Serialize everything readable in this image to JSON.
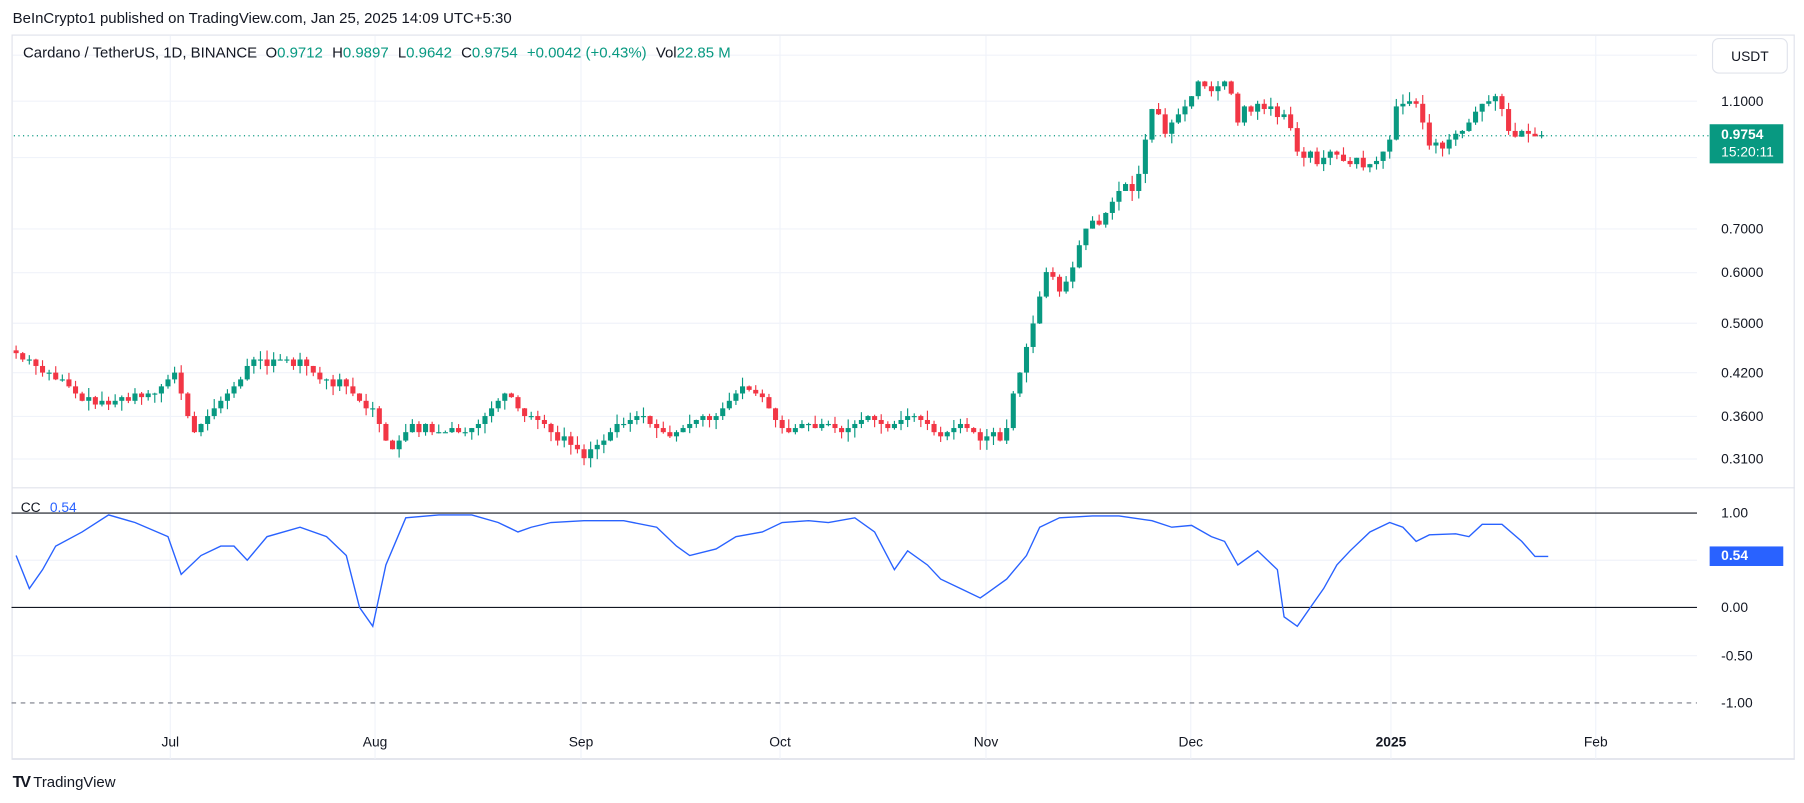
{
  "published": "BeInCrypto1 published on TradingView.com, Jan 25, 2025 14:09 UTC+5:30",
  "legend": {
    "symbol": "Cardano / TetherUS, 1D, BINANCE",
    "o_label": "O",
    "o": "0.9712",
    "h_label": "H",
    "h": "0.9897",
    "l_label": "L",
    "l": "0.9642",
    "c_label": "C",
    "c": "0.9754",
    "change": "+0.0042 (+0.43%)",
    "vol_label": "Vol",
    "vol": "22.85 M"
  },
  "currency_button": "USDT",
  "price_axis": [
    "1.1000",
    "0.7000",
    "0.6000",
    "0.5000",
    "0.4200",
    "0.3600",
    "0.3100"
  ],
  "last_price": {
    "value": "0.9754",
    "countdown": "15:20:11"
  },
  "indicator": {
    "name": "CC",
    "value": "0.54",
    "axis": [
      "1.00",
      "0.50",
      "0.00",
      "-0.50",
      "-1.00"
    ]
  },
  "time_axis": [
    "Jul",
    "Aug",
    "Sep",
    "Oct",
    "Nov",
    "Dec",
    "2025",
    "Feb"
  ],
  "footer_brand": "TradingView",
  "colors": {
    "up": "#089981",
    "down": "#f23645",
    "cc_line": "#2962ff"
  },
  "chart_data": {
    "type": "candlestick",
    "start_date": "2024-06-08",
    "interval": "1D",
    "scale": "log",
    "ylim": [
      0.28,
      1.3
    ],
    "closes": [
      0.45,
      0.44,
      0.44,
      0.43,
      0.42,
      0.42,
      0.41,
      0.41,
      0.4,
      0.39,
      0.38,
      0.385,
      0.375,
      0.38,
      0.375,
      0.38,
      0.385,
      0.38,
      0.39,
      0.385,
      0.39,
      0.39,
      0.4,
      0.41,
      0.42,
      0.39,
      0.36,
      0.34,
      0.35,
      0.36,
      0.37,
      0.38,
      0.39,
      0.4,
      0.41,
      0.43,
      0.44,
      0.44,
      0.43,
      0.44,
      0.44,
      0.44,
      0.43,
      0.44,
      0.43,
      0.42,
      0.41,
      0.41,
      0.4,
      0.41,
      0.4,
      0.39,
      0.38,
      0.37,
      0.37,
      0.35,
      0.33,
      0.32,
      0.33,
      0.34,
      0.35,
      0.34,
      0.35,
      0.34,
      0.34,
      0.34,
      0.345,
      0.34,
      0.34,
      0.345,
      0.35,
      0.36,
      0.37,
      0.38,
      0.39,
      0.385,
      0.37,
      0.36,
      0.36,
      0.355,
      0.35,
      0.34,
      0.33,
      0.335,
      0.325,
      0.32,
      0.31,
      0.32,
      0.325,
      0.33,
      0.34,
      0.35,
      0.35,
      0.355,
      0.36,
      0.36,
      0.35,
      0.345,
      0.34,
      0.335,
      0.34,
      0.345,
      0.35,
      0.355,
      0.36,
      0.355,
      0.36,
      0.37,
      0.38,
      0.39,
      0.4,
      0.395,
      0.39,
      0.385,
      0.37,
      0.355,
      0.345,
      0.34,
      0.345,
      0.35,
      0.35,
      0.345,
      0.35,
      0.35,
      0.345,
      0.34,
      0.345,
      0.35,
      0.355,
      0.36,
      0.355,
      0.35,
      0.345,
      0.35,
      0.355,
      0.36,
      0.36,
      0.355,
      0.35,
      0.34,
      0.335,
      0.34,
      0.345,
      0.35,
      0.345,
      0.34,
      0.33,
      0.335,
      0.34,
      0.33,
      0.345,
      0.39,
      0.42,
      0.46,
      0.5,
      0.55,
      0.6,
      0.59,
      0.56,
      0.58,
      0.61,
      0.66,
      0.7,
      0.72,
      0.71,
      0.74,
      0.77,
      0.8,
      0.82,
      0.8,
      0.85,
      0.96,
      1.07,
      1.05,
      0.98,
      1.02,
      1.05,
      1.08,
      1.12,
      1.18,
      1.16,
      1.14,
      1.16,
      1.18,
      1.13,
      1.02,
      1.08,
      1.06,
      1.09,
      1.07,
      1.08,
      1.04,
      1.05,
      1.0,
      0.92,
      0.9,
      0.92,
      0.88,
      0.9,
      0.92,
      0.91,
      0.89,
      0.88,
      0.9,
      0.87,
      0.88,
      0.89,
      0.92,
      0.96,
      1.08,
      1.09,
      1.1,
      1.09,
      1.02,
      0.94,
      0.95,
      0.93,
      0.96,
      0.98,
      0.99,
      1.02,
      1.06,
      1.09,
      1.1,
      1.12,
      1.07,
      0.99,
      0.97,
      0.99,
      0.98,
      0.9712,
      0.9754
    ],
    "cc_points": [
      [
        0,
        0.55
      ],
      [
        2,
        0.2
      ],
      [
        4,
        0.4
      ],
      [
        6,
        0.65
      ],
      [
        10,
        0.8
      ],
      [
        14,
        0.98
      ],
      [
        18,
        0.9
      ],
      [
        23,
        0.75
      ],
      [
        25,
        0.35
      ],
      [
        28,
        0.55
      ],
      [
        31,
        0.65
      ],
      [
        33,
        0.65
      ],
      [
        35,
        0.5
      ],
      [
        38,
        0.75
      ],
      [
        43,
        0.85
      ],
      [
        47,
        0.75
      ],
      [
        50,
        0.55
      ],
      [
        52,
        0.0
      ],
      [
        54,
        -0.2
      ],
      [
        56,
        0.45
      ],
      [
        59,
        0.95
      ],
      [
        64,
        0.98
      ],
      [
        69,
        0.98
      ],
      [
        73,
        0.9
      ],
      [
        76,
        0.8
      ],
      [
        78,
        0.85
      ],
      [
        81,
        0.9
      ],
      [
        86,
        0.92
      ],
      [
        92,
        0.92
      ],
      [
        97,
        0.85
      ],
      [
        100,
        0.65
      ],
      [
        102,
        0.55
      ],
      [
        106,
        0.62
      ],
      [
        109,
        0.75
      ],
      [
        113,
        0.8
      ],
      [
        116,
        0.9
      ],
      [
        120,
        0.92
      ],
      [
        123,
        0.9
      ],
      [
        127,
        0.95
      ],
      [
        130,
        0.8
      ],
      [
        133,
        0.4
      ],
      [
        135,
        0.6
      ],
      [
        138,
        0.45
      ],
      [
        140,
        0.3
      ],
      [
        143,
        0.2
      ],
      [
        146,
        0.1
      ],
      [
        147,
        0.15
      ],
      [
        150,
        0.3
      ],
      [
        153,
        0.55
      ],
      [
        155,
        0.85
      ],
      [
        158,
        0.95
      ],
      [
        163,
        0.97
      ],
      [
        167,
        0.97
      ],
      [
        172,
        0.92
      ],
      [
        175,
        0.85
      ],
      [
        178,
        0.87
      ],
      [
        181,
        0.75
      ],
      [
        183,
        0.7
      ],
      [
        185,
        0.45
      ],
      [
        188,
        0.6
      ],
      [
        191,
        0.4
      ],
      [
        192,
        -0.1
      ],
      [
        194,
        -0.2
      ],
      [
        196,
        0.0
      ],
      [
        198,
        0.2
      ],
      [
        200,
        0.45
      ],
      [
        202,
        0.6
      ],
      [
        205,
        0.8
      ],
      [
        208,
        0.9
      ],
      [
        210,
        0.85
      ],
      [
        212,
        0.7
      ],
      [
        214,
        0.77
      ],
      [
        218,
        0.78
      ],
      [
        220,
        0.75
      ],
      [
        222,
        0.88
      ],
      [
        225,
        0.88
      ],
      [
        228,
        0.7
      ],
      [
        230,
        0.54
      ],
      [
        232,
        0.54
      ]
    ]
  }
}
